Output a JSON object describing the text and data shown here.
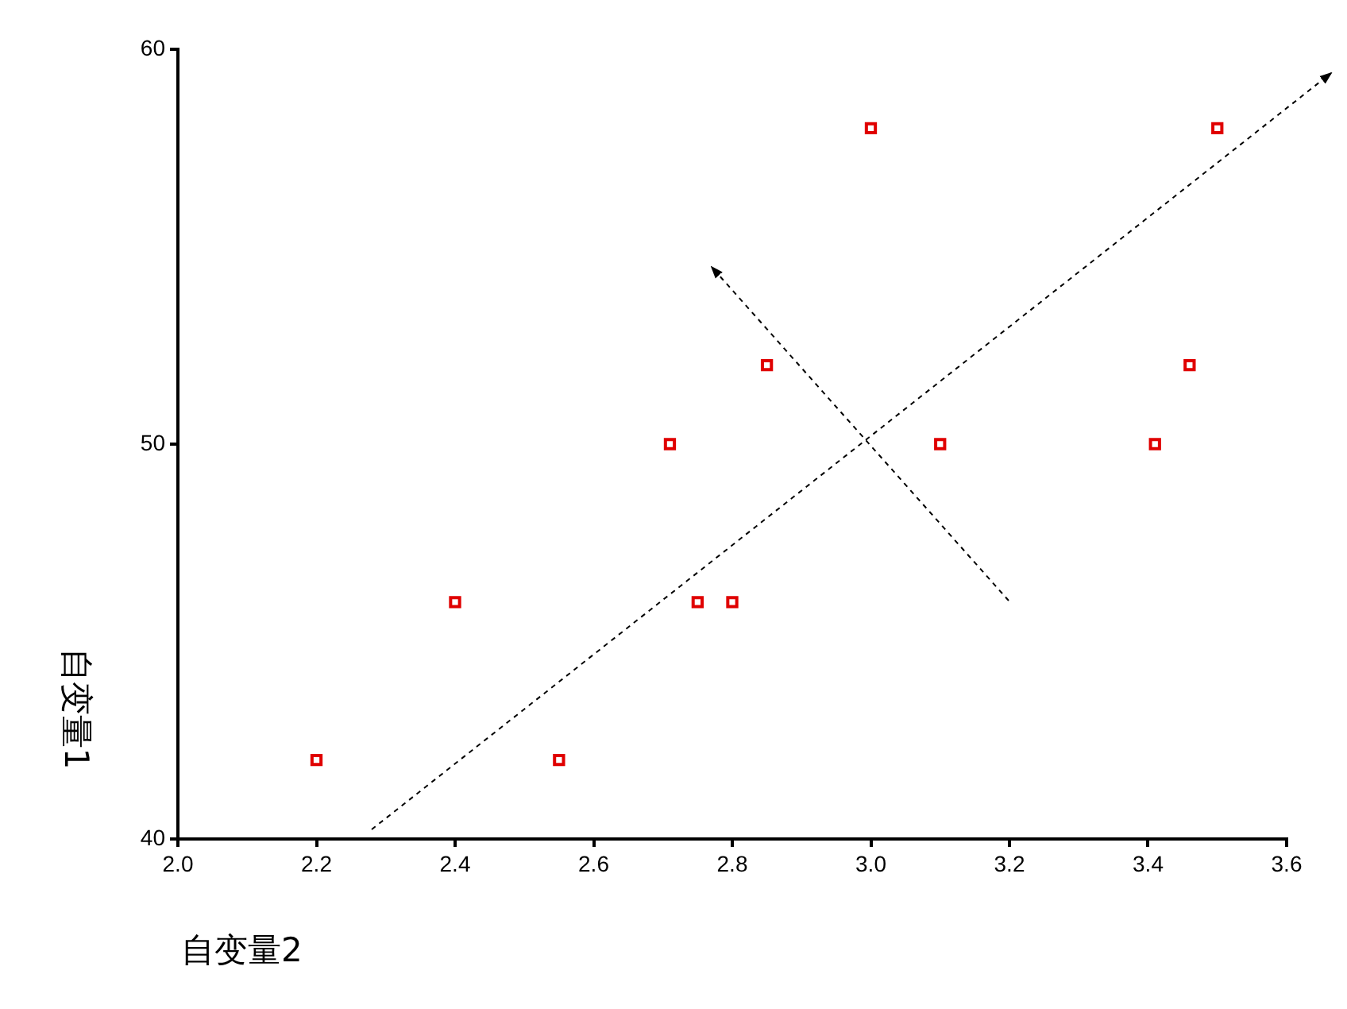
{
  "chart_data": {
    "type": "scatter",
    "xlabel": "自变量2",
    "ylabel": "自变量1",
    "x": [
      2.2,
      2.4,
      2.55,
      2.71,
      2.75,
      2.8,
      2.85,
      3.0,
      3.1,
      3.41,
      3.46,
      3.5
    ],
    "series": [
      {
        "color": "#e00000",
        "values": [
          42,
          46,
          42,
          50,
          46,
          46,
          52,
          58,
          50,
          50,
          52,
          58
        ]
      }
    ],
    "xlim": [
      2.0,
      3.6
    ],
    "xticks": [
      {
        "value": 2.0,
        "label": "2.0"
      },
      {
        "value": 2.2,
        "label": "2.2"
      },
      {
        "value": 2.4,
        "label": "2.4"
      },
      {
        "value": 2.6,
        "label": "2.6"
      },
      {
        "value": 2.8,
        "label": "2.8"
      },
      {
        "value": 3.0,
        "label": "3.0"
      },
      {
        "value": 3.2,
        "label": "3.2"
      },
      {
        "value": 3.4,
        "label": "3.4"
      },
      {
        "value": 3.6,
        "label": "3.6"
      }
    ],
    "ylim": [
      40,
      60
    ],
    "yticks": [
      40,
      50,
      60
    ],
    "grid": false,
    "legend": false,
    "marker": "square"
  }
}
